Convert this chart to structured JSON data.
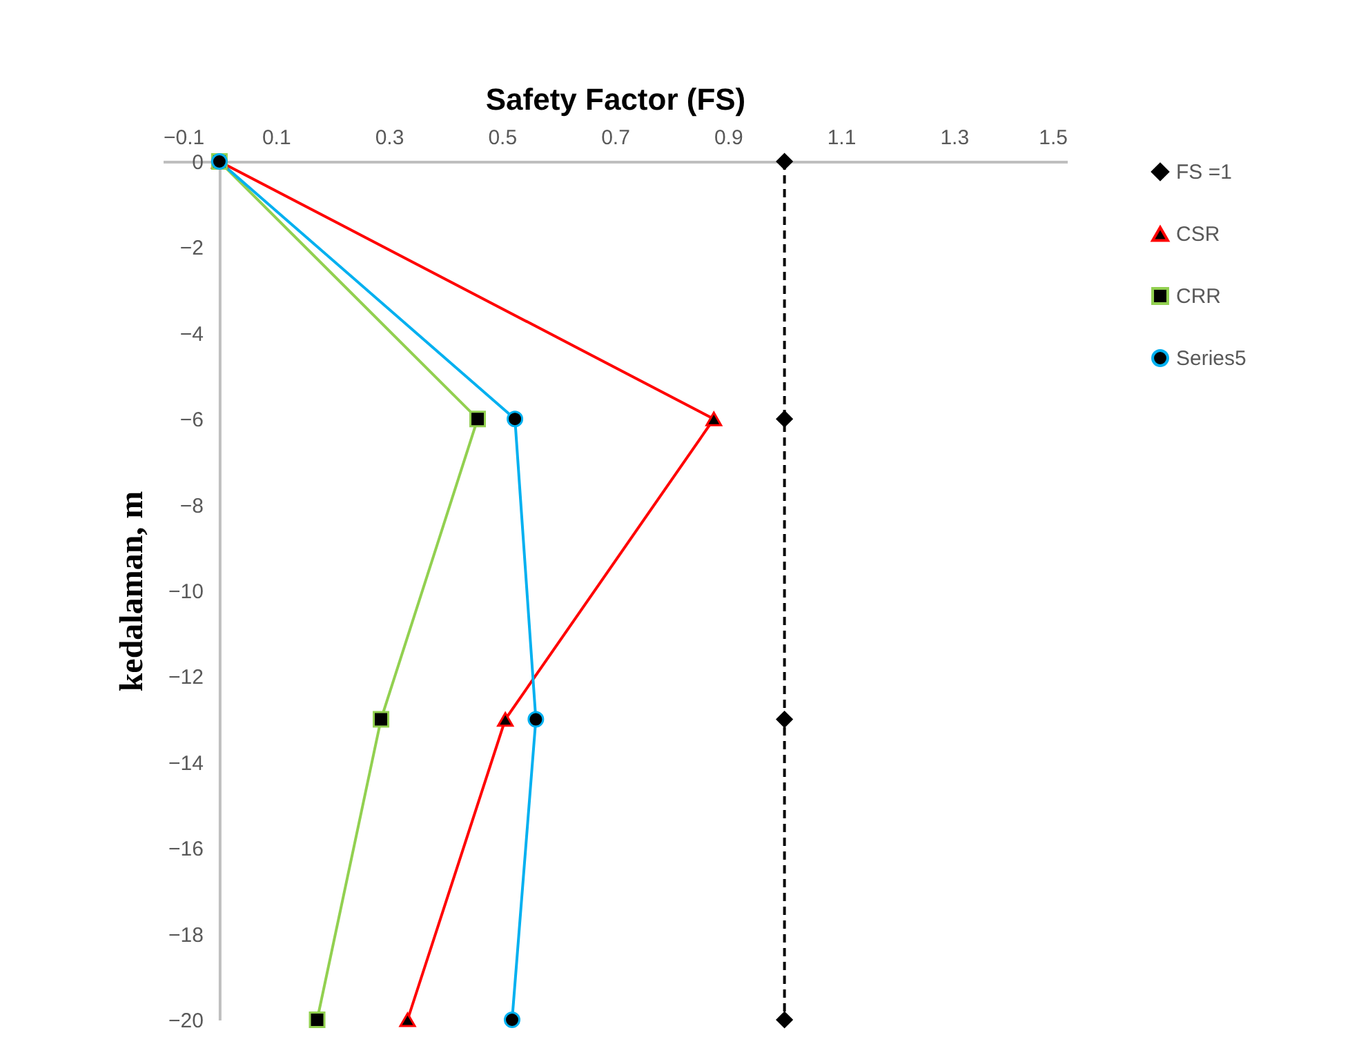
{
  "chart_data": {
    "type": "line",
    "xlabel": "Safety Factor (FS)",
    "ylabel": "kedalaman, m",
    "xlim": [
      -0.1,
      1.5
    ],
    "xticks": [
      -0.1,
      0.1,
      0.3,
      0.5,
      0.7,
      0.9,
      1.1,
      1.3,
      1.5
    ],
    "ylim": [
      -20,
      0
    ],
    "yticks": [
      0,
      -2,
      -4,
      -6,
      -8,
      -10,
      -12,
      -14,
      -16,
      -18,
      -20
    ],
    "grid": false,
    "legend": "right",
    "series": [
      {
        "name": "FS =1",
        "color": "#000000",
        "marker": "diamond",
        "line_style": "dashed",
        "x": [
          1,
          1,
          1,
          1
        ],
        "values": [
          0,
          -6,
          -13,
          -20
        ]
      },
      {
        "name": "CSR",
        "color": "#ff0000",
        "marker": "triangle",
        "line_style": "solid",
        "x": [
          0,
          0.875,
          0.506,
          0.333
        ],
        "values": [
          0,
          -6,
          -13,
          -20
        ]
      },
      {
        "name": "CRR",
        "color": "#92d050",
        "marker": "square",
        "line_style": "solid",
        "x": [
          0,
          0.457,
          0.286,
          0.173
        ],
        "values": [
          0,
          -6,
          -13,
          -20
        ]
      },
      {
        "name": "Series5",
        "color": "#00b0f0",
        "marker": "circle",
        "line_style": "solid",
        "x": [
          0,
          0.523,
          0.56,
          0.518
        ],
        "values": [
          0,
          -6,
          -13,
          -20
        ]
      }
    ]
  }
}
